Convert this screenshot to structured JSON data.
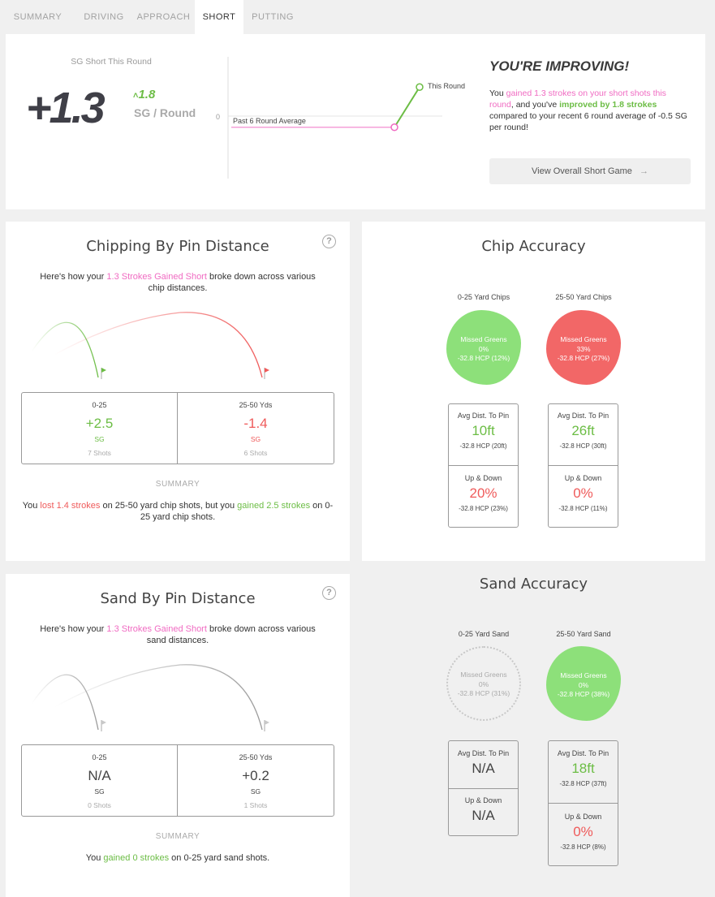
{
  "tabs": [
    {
      "label": "SUMMARY"
    },
    {
      "label": "DRIVING"
    },
    {
      "label": "APPROACH"
    },
    {
      "label": "SHORT"
    },
    {
      "label": "PUTTING"
    }
  ],
  "active_tab": "SHORT",
  "hero": {
    "sg_label": "SG Short This Round",
    "sg_value": "+1.3",
    "delta": "1.8",
    "delta_arrow": "˄",
    "per_round": "SG / Round",
    "chart": {
      "zero_label": "0",
      "avg_label": "Past 6 Round Average",
      "this_label": "This Round",
      "avg_value": -0.5,
      "this_value": 1.3
    },
    "headline": "YOU'RE IMPROVING!",
    "msg": {
      "p1": "You ",
      "p2": "gained 1.3 strokes on your short shots this round",
      "p3": ", and you've ",
      "p4": "improved by 1.8 strokes",
      "p5": " compared to your recent 6 round average of -0.5 SG per round!"
    },
    "button_label": "View Overall Short Game",
    "button_arrow": "→"
  },
  "chipping": {
    "title": "Chipping By Pin Distance",
    "help": "?",
    "desc": {
      "p1": "Here's how your ",
      "p2": "1.3 Strokes Gained Short",
      "p3": " broke down across various chip distances."
    },
    "cols": [
      {
        "label": "0-25",
        "value": "+2.5",
        "unit": "SG",
        "shots": "7 Shots"
      },
      {
        "label": "25-50 Yds",
        "value": "-1.4",
        "unit": "SG",
        "shots": "6 Shots"
      }
    ],
    "summary_heading": "SUMMARY",
    "summary": {
      "p1": "You ",
      "p2": "lost 1.4 strokes",
      "p3": " on 25-50 yard chip shots, but you ",
      "p4": "gained 2.5 strokes",
      "p5": " on 0-25 yard chip shots."
    }
  },
  "chip_accuracy": {
    "title": "Chip Accuracy",
    "groups": [
      {
        "label": "0-25 Yard Chips",
        "blob": {
          "title": "Missed Greens",
          "pct": "0%",
          "hcp": "-32.8 HCP (12%)"
        },
        "avg_dist": {
          "label": "Avg Dist. To Pin",
          "value": "10ft",
          "hcp": "-32.8 HCP (20ft)"
        },
        "up_down": {
          "label": "Up & Down",
          "value": "20%",
          "hcp": "-32.8 HCP (23%)"
        }
      },
      {
        "label": "25-50 Yard Chips",
        "blob": {
          "title": "Missed Greens",
          "pct": "33%",
          "hcp": "-32.8 HCP (27%)"
        },
        "avg_dist": {
          "label": "Avg Dist. To Pin",
          "value": "26ft",
          "hcp": "-32.8 HCP (30ft)"
        },
        "up_down": {
          "label": "Up & Down",
          "value": "0%",
          "hcp": "-32.8 HCP (11%)"
        }
      }
    ]
  },
  "sand": {
    "title": "Sand By Pin Distance",
    "help": "?",
    "desc": {
      "p1": "Here's how your ",
      "p2": "1.3 Strokes Gained Short",
      "p3": " broke down across various sand distances."
    },
    "cols": [
      {
        "label": "0-25",
        "value": "N/A",
        "unit": "SG",
        "shots": "0 Shots"
      },
      {
        "label": "25-50 Yds",
        "value": "+0.2",
        "unit": "SG",
        "shots": "1 Shots"
      }
    ],
    "summary_heading": "SUMMARY",
    "summary": {
      "p1": "You ",
      "p2": "gained 0 strokes",
      "p3": " on 0-25 yard sand shots."
    }
  },
  "sand_accuracy": {
    "title": "Sand Accuracy",
    "groups": [
      {
        "label": "0-25 Yard Sand",
        "blob": {
          "title": "Missed Greens",
          "pct": "0%",
          "hcp": "-32.8 HCP (31%)"
        },
        "avg_dist": {
          "label": "Avg Dist. To Pin",
          "value": "N/A",
          "hcp": ""
        },
        "up_down": {
          "label": "Up & Down",
          "value": "N/A",
          "hcp": ""
        }
      },
      {
        "label": "25-50 Yard Sand",
        "blob": {
          "title": "Missed Greens",
          "pct": "0%",
          "hcp": "-32.8 HCP (38%)"
        },
        "avg_dist": {
          "label": "Avg Dist. To Pin",
          "value": "18ft",
          "hcp": "-32.8 HCP (37ft)"
        },
        "up_down": {
          "label": "Up & Down",
          "value": "0%",
          "hcp": "-32.8 HCP (8%)"
        }
      }
    ]
  },
  "colors": {
    "green": "#6cbd45",
    "red": "#ef5a5a",
    "pink": "#f06bc2",
    "blob_green": "#8de07a",
    "blob_red": "#f26767"
  }
}
